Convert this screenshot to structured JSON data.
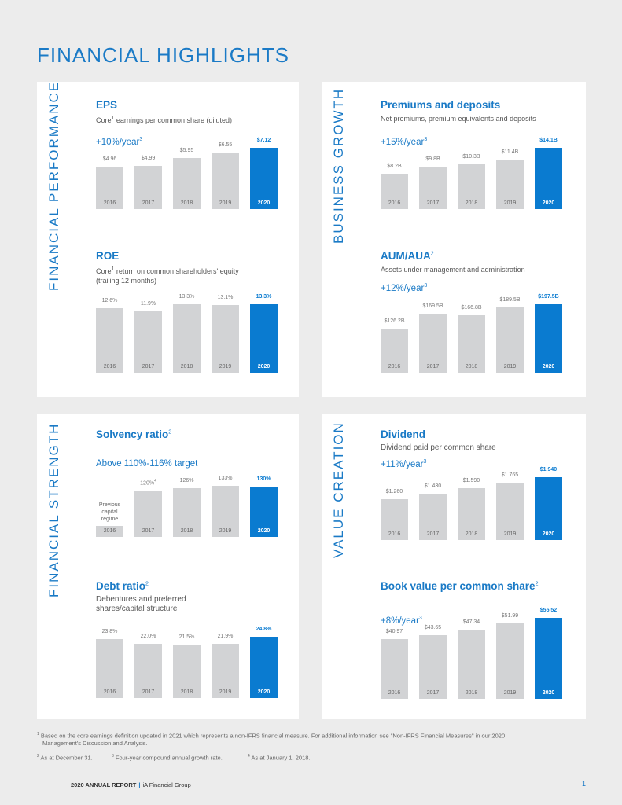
{
  "page_title": "FINANCIAL HIGHLIGHTS",
  "sections": {
    "financial_performance": "FINANCIAL PERFORMANCE",
    "business_growth": "BUSINESS GROWTH",
    "financial_strength": "FINANCIAL STRENGTH",
    "value_creation": "VALUE CREATION"
  },
  "colors": {
    "accent": "#1a7ac6",
    "highlight_bar": "#0a7bd0",
    "bar": "#d2d3d5"
  },
  "charts": {
    "eps": {
      "title": "EPS",
      "sub_sup": "1",
      "sub_a": "Core",
      "sub_b": " earnings per common share (diluted)",
      "growth": "+10%/year",
      "growth_sup": "3",
      "years": [
        "2016",
        "2017",
        "2018",
        "2019",
        "2020"
      ],
      "labels": [
        "$4.96",
        "$4.99",
        "$5.95",
        "$6.55",
        "$7.12"
      ],
      "values": [
        4.96,
        4.99,
        5.95,
        6.55,
        7.12
      ]
    },
    "premiums": {
      "title": "Premiums and deposits",
      "sub": "Net premiums, premium equivalents and deposits",
      "growth": "+15%/year",
      "growth_sup": "3",
      "years": [
        "2016",
        "2017",
        "2018",
        "2019",
        "2020"
      ],
      "labels": [
        "$8.2B",
        "$9.8B",
        "$10.3B",
        "$11.4B",
        "$14.1B"
      ],
      "values": [
        8.2,
        9.8,
        10.3,
        11.4,
        14.1
      ]
    },
    "roe": {
      "title": "ROE",
      "sub_a": "Core",
      "sub_sup": "1",
      "sub_b": " return on common shareholders' equity",
      "sub_c": "(trailing 12 months)",
      "years": [
        "2016",
        "2017",
        "2018",
        "2019",
        "2020"
      ],
      "labels": [
        "12.6%",
        "11.9%",
        "13.3%",
        "13.1%",
        "13.3%"
      ],
      "values": [
        12.6,
        11.9,
        13.3,
        13.1,
        13.3
      ]
    },
    "aum": {
      "title": "AUM/AUA",
      "title_sup": "2",
      "sub": "Assets under management and administration",
      "growth": "+12%/year",
      "growth_sup": "3",
      "years": [
        "2016",
        "2017",
        "2018",
        "2019",
        "2020"
      ],
      "labels": [
        "$126.2B",
        "$169.5B",
        "$166.8B",
        "$189.5B",
        "$197.5B"
      ],
      "values": [
        126.2,
        169.5,
        166.8,
        189.5,
        197.5
      ]
    },
    "solvency": {
      "title": "Solvency ratio",
      "title_sup": "2",
      "growth": "Above 110%-116% target",
      "years": [
        "2016",
        "2017",
        "2018",
        "2019",
        "2020"
      ],
      "labels": [
        "",
        "120%",
        "126%",
        "133%",
        "130%"
      ],
      "label_sup_2017": "4",
      "values": [
        null,
        120,
        126,
        133,
        130
      ],
      "note_2016": "Previous capital regime"
    },
    "dividend": {
      "title": "Dividend",
      "sub": "Dividend paid per common share",
      "growth": "+11%/year",
      "growth_sup": "3",
      "years": [
        "2016",
        "2017",
        "2018",
        "2019",
        "2020"
      ],
      "labels": [
        "$1.260",
        "$1.430",
        "$1.590",
        "$1.765",
        "$1.940"
      ],
      "values": [
        1.26,
        1.43,
        1.59,
        1.765,
        1.94
      ]
    },
    "debt": {
      "title": "Debt ratio",
      "title_sup": "2",
      "sub_a": "Debentures and preferred",
      "sub_b": "shares/capital structure",
      "years": [
        "2016",
        "2017",
        "2018",
        "2019",
        "2020"
      ],
      "labels": [
        "23.8%",
        "22.0%",
        "21.5%",
        "21.9%",
        "24.8%"
      ],
      "values": [
        23.8,
        22.0,
        21.5,
        21.9,
        24.8
      ]
    },
    "book_value": {
      "title": "Book value per common share",
      "title_sup": "2",
      "growth": "+8%/year",
      "growth_sup": "3",
      "years": [
        "2016",
        "2017",
        "2018",
        "2019",
        "2020"
      ],
      "labels": [
        "$40.97",
        "$43.65",
        "$47.34",
        "$51.99",
        "$55.52"
      ],
      "values": [
        40.97,
        43.65,
        47.34,
        51.99,
        55.52
      ]
    }
  },
  "footnotes": {
    "n1_sup": "1",
    "n1_line1": "Based on the core earnings definition updated in 2021 which represents a non-IFRS financial measure. For additional information see \"Non-IFRS Financial Measures\" in our 2020",
    "n1_line2": "Management's Discussion and Analysis.",
    "n2_sup": "2",
    "n2": "As at December 31.",
    "n3_sup": "3",
    "n3": "Four-year compound annual growth rate.",
    "n4_sup": "4",
    "n4": "As at January 1, 2018."
  },
  "footer": {
    "report": "2020 ANNUAL REPORT",
    "sep": "|",
    "company": "iA Financial Group",
    "page": "1"
  }
}
